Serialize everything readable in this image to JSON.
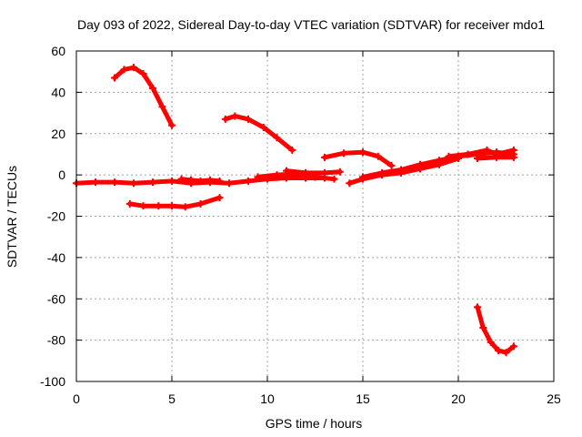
{
  "chart_data": {
    "type": "scatter",
    "title": "Day 093 of 2022, Sidereal Day-to-day VTEC variation (SDTVAR) for receiver mdo1",
    "xlabel": "GPS time / hours",
    "ylabel": "SDTVAR / TECUs",
    "xlim": [
      0,
      25
    ],
    "ylim": [
      -100,
      60
    ],
    "xticks": [
      0,
      5,
      10,
      15,
      20,
      25
    ],
    "yticks": [
      -100,
      -80,
      -60,
      -40,
      -20,
      0,
      20,
      40,
      60
    ],
    "grid": true,
    "color": "#ff0000",
    "series": [
      {
        "name": "track-1",
        "x": [
          2.0,
          2.5,
          3.0,
          3.5,
          4.0,
          4.5,
          5.0
        ],
        "y": [
          47,
          51,
          52,
          49,
          42,
          33,
          24
        ]
      },
      {
        "name": "track-2",
        "x": [
          7.8,
          8.3,
          9.0,
          9.8,
          10.5,
          11.3
        ],
        "y": [
          27,
          28.5,
          27,
          23,
          18,
          12
        ]
      },
      {
        "name": "track-3",
        "x": [
          13.0,
          14.0,
          15.0,
          15.8,
          16.5
        ],
        "y": [
          8.5,
          10.5,
          11,
          9,
          4.5
        ]
      },
      {
        "name": "track-4",
        "x": [
          21.0,
          21.3,
          21.7,
          22.1,
          22.5,
          22.9
        ],
        "y": [
          -64,
          -74,
          -81,
          -85,
          -86,
          -83
        ]
      },
      {
        "name": "track-5",
        "x": [
          2.8,
          3.5,
          4.3,
          5.0,
          5.7,
          6.5,
          7.5
        ],
        "y": [
          -14,
          -15,
          -15,
          -15,
          -15.5,
          -14,
          -11
        ]
      },
      {
        "name": "track-6",
        "x": [
          0,
          1,
          2,
          3,
          4,
          5,
          6,
          7,
          8,
          9,
          10,
          11,
          12,
          13
        ],
        "y": [
          -4,
          -3.5,
          -3.5,
          -4,
          -3.5,
          -3,
          -4,
          -3.5,
          -4,
          -3,
          -2,
          -1.5,
          -1.5,
          -1.5
        ]
      },
      {
        "name": "track-7",
        "x": [
          5.5,
          6.0,
          6.5,
          7.0,
          7.5
        ],
        "y": [
          -2,
          -2.5,
          -3,
          -2.5,
          -3
        ]
      },
      {
        "name": "track-8",
        "x": [
          9.5,
          10.5,
          11.5,
          12.5,
          13.5
        ],
        "y": [
          -1,
          0,
          0.5,
          -1,
          -2
        ]
      },
      {
        "name": "track-9",
        "x": [
          11.0,
          12.0,
          13.0,
          13.8
        ],
        "y": [
          2,
          1,
          1,
          1.5
        ]
      },
      {
        "name": "track-10",
        "x": [
          14.3,
          15.0,
          16.0,
          17.0,
          18.0,
          19.0,
          20.0
        ],
        "y": [
          -4,
          -2,
          0,
          1,
          3,
          5,
          8
        ]
      },
      {
        "name": "track-11",
        "x": [
          15.0,
          16.0,
          17.0,
          18.0,
          19.0,
          20.0,
          21.0
        ],
        "y": [
          -1,
          1,
          2.5,
          5,
          7,
          9,
          10
        ]
      },
      {
        "name": "track-12",
        "x": [
          17.0,
          18.0,
          19.0,
          20.0,
          21.0,
          22.0,
          22.9
        ],
        "y": [
          2,
          4,
          6,
          9,
          10,
          11,
          10
        ]
      },
      {
        "name": "track-13",
        "x": [
          19.5,
          20.5,
          21.5,
          22.0,
          22.9
        ],
        "y": [
          9,
          10,
          12,
          10,
          12
        ]
      },
      {
        "name": "track-14",
        "x": [
          21.0,
          22.0,
          22.9
        ],
        "y": [
          8,
          8.5,
          8.5
        ]
      }
    ]
  }
}
